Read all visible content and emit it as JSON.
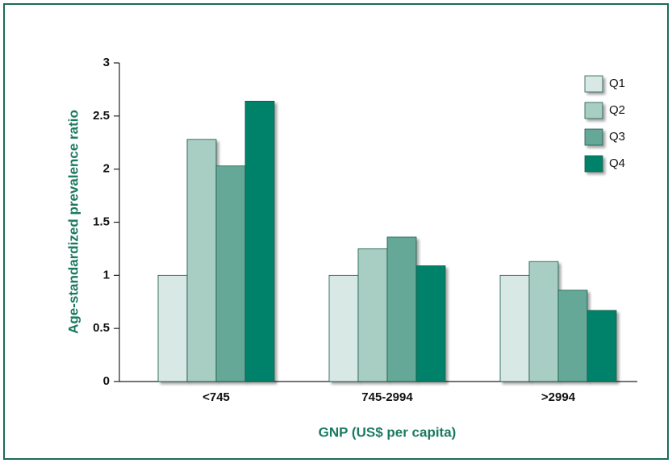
{
  "chart_data": {
    "type": "bar",
    "xlabel": "GNP (US$ per capita)",
    "ylabel": "Age-standardized prevalence ratio",
    "categories": [
      "<745",
      "745-2994",
      ">2994"
    ],
    "series": [
      {
        "name": "Q1",
        "color": "#d8e8e4",
        "values": [
          1.0,
          1.0,
          1.0
        ]
      },
      {
        "name": "Q2",
        "color": "#a8cdc2",
        "values": [
          2.28,
          1.25,
          1.13
        ]
      },
      {
        "name": "Q3",
        "color": "#66a898",
        "values": [
          2.03,
          1.36,
          0.86
        ]
      },
      {
        "name": "Q4",
        "color": "#00826a",
        "values": [
          2.64,
          1.09,
          0.67
        ]
      }
    ],
    "ylim": [
      0,
      3
    ],
    "yticks": [
      0,
      0.5,
      1,
      1.5,
      2,
      2.5,
      3
    ],
    "legend": "upper right"
  }
}
